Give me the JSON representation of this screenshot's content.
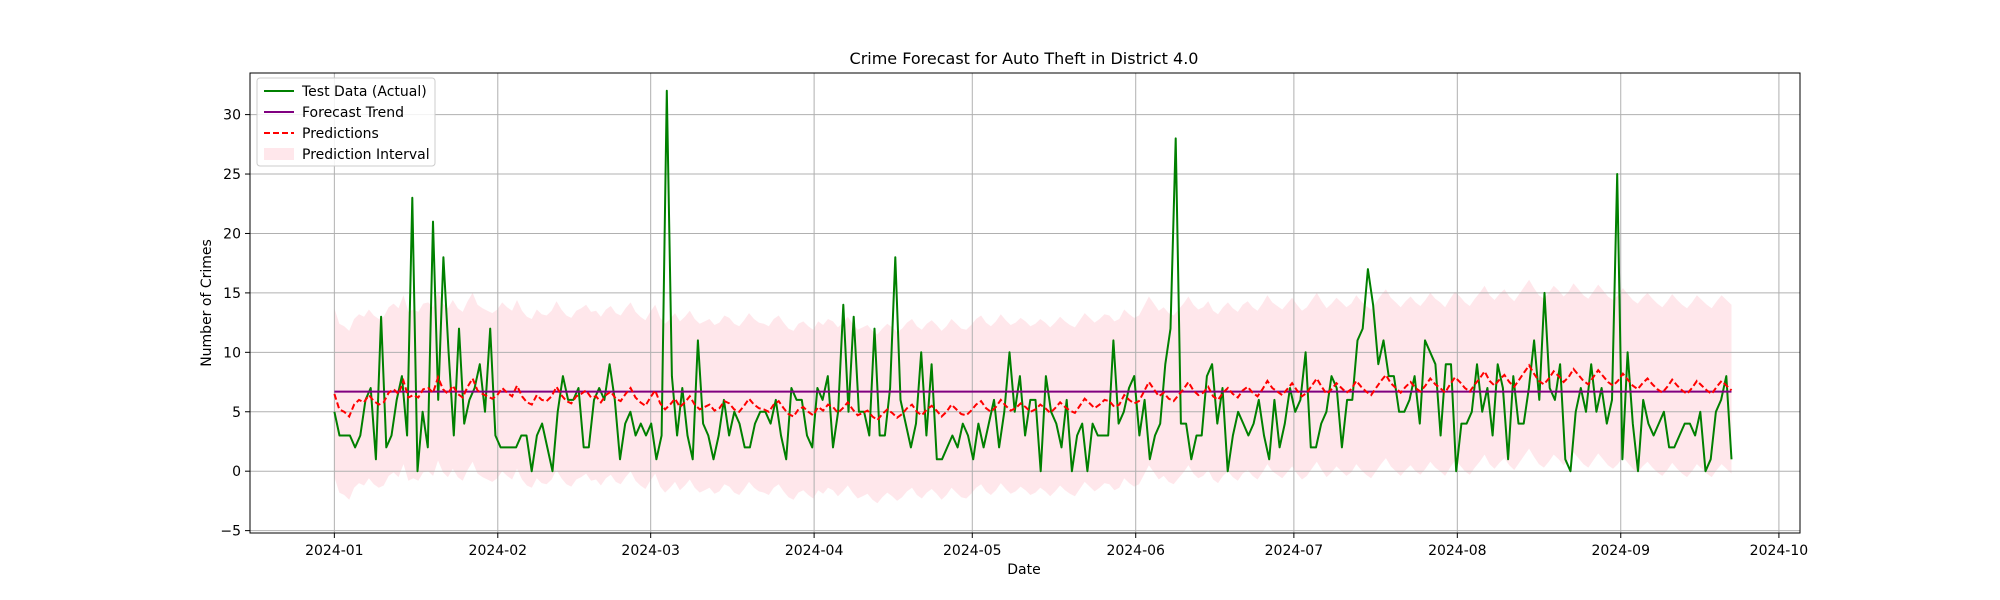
{
  "chart_data": {
    "type": "line",
    "title": "Crime Forecast for Auto Theft in District 4.0",
    "xlabel": "Date",
    "ylabel": "Number of Crimes",
    "xlim": [
      "2023-12-16",
      "2024-10-05"
    ],
    "ylim": [
      -5.2,
      33.5
    ],
    "grid": true,
    "legend_position": "top-left",
    "x_ticks": [
      {
        "date": "2024-01-01",
        "label": "2024-01"
      },
      {
        "date": "2024-02-01",
        "label": "2024-02"
      },
      {
        "date": "2024-03-01",
        "label": "2024-03"
      },
      {
        "date": "2024-04-01",
        "label": "2024-04"
      },
      {
        "date": "2024-05-01",
        "label": "2024-05"
      },
      {
        "date": "2024-06-01",
        "label": "2024-06"
      },
      {
        "date": "2024-07-01",
        "label": "2024-07"
      },
      {
        "date": "2024-08-01",
        "label": "2024-08"
      },
      {
        "date": "2024-09-01",
        "label": "2024-09"
      },
      {
        "date": "2024-10-01",
        "label": "2024-10"
      }
    ],
    "y_ticks": [
      -5,
      0,
      5,
      10,
      15,
      20,
      25,
      30
    ],
    "x_start": "2024-01-01",
    "x_end": "2024-09-22",
    "series": [
      {
        "name": "Test Data (Actual)",
        "kind": "line",
        "color": "#008000",
        "values": [
          5,
          3,
          3,
          3,
          2,
          3,
          6,
          7,
          1,
          13,
          2,
          3,
          6,
          8,
          3,
          23,
          0,
          5,
          2,
          21,
          6,
          18,
          10,
          3,
          12,
          4,
          6,
          7,
          9,
          5,
          12,
          3,
          2,
          2,
          2,
          2,
          3,
          3,
          0,
          3,
          4,
          2,
          0,
          5,
          8,
          6,
          6,
          7,
          2,
          2,
          6,
          7,
          6,
          9,
          6,
          1,
          4,
          5,
          3,
          4,
          3,
          4,
          1,
          3,
          32,
          8,
          3,
          7,
          3,
          1,
          11,
          4,
          3,
          1,
          3,
          6,
          3,
          5,
          4,
          2,
          2,
          4,
          5,
          5,
          4,
          6,
          3,
          1,
          7,
          6,
          6,
          3,
          2,
          7,
          6,
          8,
          2,
          5,
          14,
          5,
          13,
          5,
          5,
          3,
          12,
          3,
          3,
          7,
          18,
          6,
          4,
          2,
          4,
          10,
          3,
          9,
          1,
          1,
          2,
          3,
          2,
          4,
          3,
          1,
          4,
          2,
          4,
          6,
          2,
          5,
          10,
          5,
          8,
          3,
          6,
          6,
          0,
          8,
          5,
          4,
          2,
          6,
          0,
          3,
          4,
          0,
          4,
          3,
          3,
          3,
          11,
          4,
          5,
          7,
          8,
          3,
          6,
          1,
          3,
          4,
          9,
          12,
          28,
          4,
          4,
          1,
          3,
          3,
          8,
          9,
          4,
          7,
          0,
          3,
          5,
          4,
          3,
          4,
          6,
          3,
          1,
          6,
          2,
          4,
          7,
          5,
          6,
          10,
          2,
          2,
          4,
          5,
          8,
          7,
          2,
          6,
          6,
          11,
          12,
          17,
          14,
          9,
          11,
          8,
          8,
          5,
          5,
          6,
          8,
          4,
          11,
          10,
          9,
          3,
          9,
          9,
          0,
          4,
          4,
          5,
          9,
          5,
          7,
          3,
          9,
          7,
          1,
          8,
          4,
          4,
          7,
          11,
          6,
          15,
          7,
          6,
          9,
          1,
          0,
          5,
          7,
          5,
          9,
          5,
          7,
          4,
          6,
          25,
          1,
          10,
          4,
          0,
          6,
          4,
          3,
          4,
          5,
          2,
          2,
          3,
          4,
          4,
          3,
          5,
          0,
          1,
          5,
          6,
          8,
          1
        ]
      },
      {
        "name": "Forecast Trend",
        "kind": "line",
        "color": "#800080",
        "values": [
          6.7,
          6.7
        ]
      },
      {
        "name": "Predictions",
        "kind": "dashed-line",
        "color": "#ff0000",
        "values": [
          6.5,
          5.2,
          5.0,
          4.6,
          5.6,
          6.0,
          5.8,
          6.4,
          5.9,
          5.6,
          5.8,
          6.6,
          6.9,
          6.5,
          7.6,
          6.2,
          6.4,
          6.2,
          6.9,
          7.0,
          6.6,
          7.9,
          6.9,
          6.5,
          7.2,
          6.5,
          6.2,
          7.1,
          7.8,
          6.8,
          6.5,
          6.3,
          6.1,
          6.4,
          7.0,
          6.6,
          6.3,
          7.2,
          6.3,
          5.8,
          5.6,
          6.4,
          6.0,
          5.9,
          6.3,
          7.1,
          6.4,
          5.9,
          5.7,
          6.3,
          6.5,
          6.8,
          6.2,
          6.3,
          5.8,
          6.4,
          6.7,
          6.1,
          5.9,
          6.5,
          7.0,
          6.2,
          5.8,
          5.5,
          6.2,
          6.8,
          5.7,
          5.2,
          5.6,
          6.1,
          5.4,
          5.8,
          6.3,
          5.6,
          5.2,
          5.4,
          5.6,
          5.1,
          5.3,
          5.9,
          5.7,
          5.2,
          5.0,
          5.5,
          6.1,
          5.6,
          5.3,
          5.2,
          5.0,
          5.6,
          5.9,
          5.3,
          4.8,
          4.6,
          5.2,
          5.4,
          5.0,
          4.7,
          5.4,
          5.1,
          5.6,
          5.4,
          4.9,
          5.3,
          5.8,
          5.2,
          4.7,
          4.9,
          5.1,
          4.6,
          4.3,
          4.8,
          5.2,
          4.9,
          4.5,
          4.8,
          5.3,
          5.6,
          5.0,
          4.7,
          5.2,
          5.5,
          5.1,
          4.6,
          5.0,
          5.6,
          5.2,
          4.8,
          4.7,
          5.1,
          5.6,
          5.9,
          5.3,
          5.0,
          5.4,
          6.0,
          5.5,
          5.1,
          5.3,
          5.7,
          5.4,
          5.0,
          5.2,
          5.6,
          5.3,
          4.9,
          5.3,
          5.8,
          5.4,
          5.1,
          4.9,
          5.5,
          6.1,
          5.7,
          5.3,
          5.6,
          6.0,
          5.9,
          5.4,
          5.6,
          6.4,
          6.0,
          5.7,
          5.9,
          6.7,
          7.5,
          6.9,
          6.3,
          6.6,
          6.1,
          5.9,
          6.4,
          6.9,
          7.5,
          6.8,
          6.4,
          6.6,
          7.1,
          6.3,
          6.0,
          6.6,
          7.0,
          6.5,
          6.2,
          6.8,
          7.1,
          6.6,
          6.3,
          6.9,
          7.6,
          7.0,
          6.7,
          6.4,
          6.9,
          7.4,
          6.8,
          6.3,
          6.6,
          7.2,
          7.8,
          7.1,
          6.5,
          6.9,
          7.4,
          7.0,
          6.6,
          6.9,
          7.6,
          7.1,
          6.7,
          6.4,
          7.0,
          7.6,
          8.1,
          7.4,
          7.0,
          6.6,
          7.1,
          7.5,
          7.0,
          6.7,
          7.2,
          7.8,
          7.3,
          7.0,
          6.6,
          7.3,
          7.9,
          7.5,
          7.0,
          6.7,
          7.3,
          7.8,
          8.4,
          7.6,
          7.2,
          7.7,
          8.1,
          7.5,
          7.1,
          7.7,
          8.3,
          8.9,
          8.2,
          7.6,
          7.3,
          7.8,
          8.4,
          8.0,
          7.5,
          7.9,
          8.6,
          8.1,
          7.6,
          7.3,
          7.9,
          8.5,
          8.0,
          7.5,
          7.2,
          7.6,
          8.2,
          7.7,
          7.2,
          6.9,
          7.4,
          7.8,
          7.3,
          6.9,
          6.6,
          7.1,
          7.7,
          7.2,
          6.8,
          6.5,
          7.0,
          7.6,
          7.2,
          6.8,
          6.5,
          7.1,
          7.6,
          7.2,
          6.8
        ]
      },
      {
        "name": "Prediction Interval",
        "kind": "band",
        "color": "#ffc0cb",
        "offset_below": 7.0,
        "offset_above": 7.2
      }
    ]
  }
}
